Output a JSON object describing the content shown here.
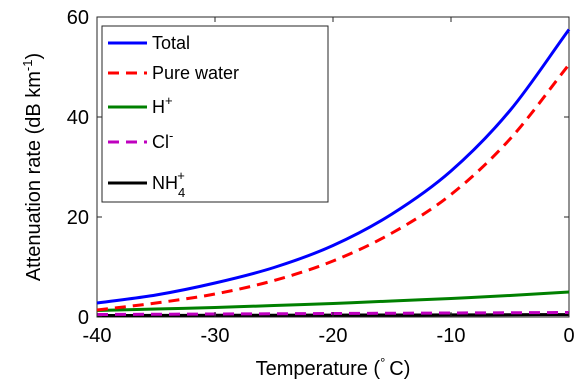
{
  "chart_data": {
    "type": "line",
    "xlabel": "Temperature (",
    "xlabel_unit": "C)",
    "xlabel_sup": "°",
    "ylabel": "Attenuation rate (dB km",
    "ylabel_sup": "-1",
    "ylabel_end": ")",
    "xlim": [
      -40,
      0
    ],
    "ylim": [
      0,
      60
    ],
    "xticks": [
      -40,
      -30,
      -20,
      -10,
      0
    ],
    "yticks": [
      0,
      20,
      40,
      60
    ],
    "xtick_labels": [
      "-40",
      "-30",
      "-20",
      "-10",
      "0"
    ],
    "ytick_labels": [
      "0",
      "20",
      "40",
      "60"
    ],
    "grid": false,
    "legend_position": "top-left",
    "x": [
      -40,
      -35,
      -30,
      -25,
      -20,
      -15,
      -10,
      -5,
      0
    ],
    "series": [
      {
        "key": "total",
        "name": "Total",
        "color": "#0000ff",
        "dash": "solid",
        "values": [
          2.8,
          4.4,
          6.8,
          9.9,
          14.3,
          20.6,
          29.2,
          41.3,
          57.5
        ]
      },
      {
        "key": "pure",
        "name": "Pure water",
        "color": "#ff0000",
        "dash": "dashed",
        "values": [
          1.4,
          2.8,
          4.6,
          7.3,
          11.2,
          16.8,
          24.5,
          35.6,
          50.5
        ]
      },
      {
        "key": "h",
        "name": "H",
        "sup": "+",
        "color": "#008000",
        "dash": "solid",
        "values": [
          1.3,
          1.6,
          1.9,
          2.3,
          2.7,
          3.2,
          3.7,
          4.3,
          5.0
        ]
      },
      {
        "key": "cl",
        "name": "Cl",
        "sup": "-",
        "color": "#bf00bf",
        "dash": "dashed",
        "values": [
          0.5,
          0.55,
          0.6,
          0.65,
          0.7,
          0.75,
          0.8,
          0.85,
          0.9
        ]
      },
      {
        "key": "nh4",
        "name": "NH",
        "sup": "+",
        "sub": "4",
        "color": "#000000",
        "dash": "solid",
        "values": [
          0.3,
          0.32,
          0.34,
          0.36,
          0.38,
          0.4,
          0.42,
          0.45,
          0.48
        ]
      }
    ]
  }
}
